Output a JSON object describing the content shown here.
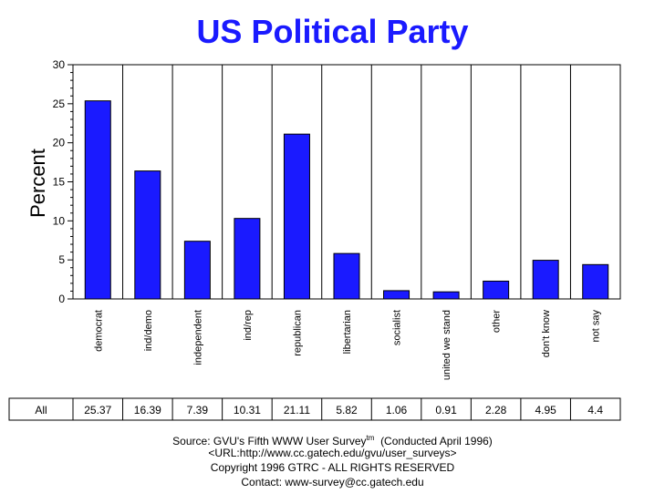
{
  "chart_data": {
    "type": "bar",
    "title": "US Political Party",
    "ylabel": "Percent",
    "ylim": [
      0,
      30
    ],
    "yticks": [
      0,
      5,
      10,
      15,
      20,
      25,
      30
    ],
    "categories": [
      "democrat",
      "ind/demo",
      "independent",
      "ind/rep",
      "republican",
      "libertarian",
      "socialist",
      "united we stand",
      "other",
      "don't know",
      "not say"
    ],
    "series": [
      {
        "name": "All",
        "values": [
          25.37,
          16.39,
          7.39,
          10.31,
          21.11,
          5.82,
          1.06,
          0.91,
          2.28,
          4.95,
          4.4
        ],
        "labels": [
          "25.37",
          "16.39",
          "7.39",
          "10.31",
          "21.11",
          "5.82",
          "1.06",
          "0.91",
          "2.28",
          "4.95",
          "4.4"
        ]
      }
    ],
    "bar_color": "#1a1aff",
    "grid": false
  },
  "footer": {
    "source": "Source: GVU's Fifth WWW User Survey",
    "source_sup": "tm",
    "source_tail": "(Conducted April 1996)",
    "url": "<URL:http://www.cc.gatech.edu/gvu/user_surveys>",
    "copyright": "Copyright 1996 GTRC -  ALL RIGHTS RESERVED",
    "contact": "Contact: www-survey@cc.gatech.edu"
  }
}
